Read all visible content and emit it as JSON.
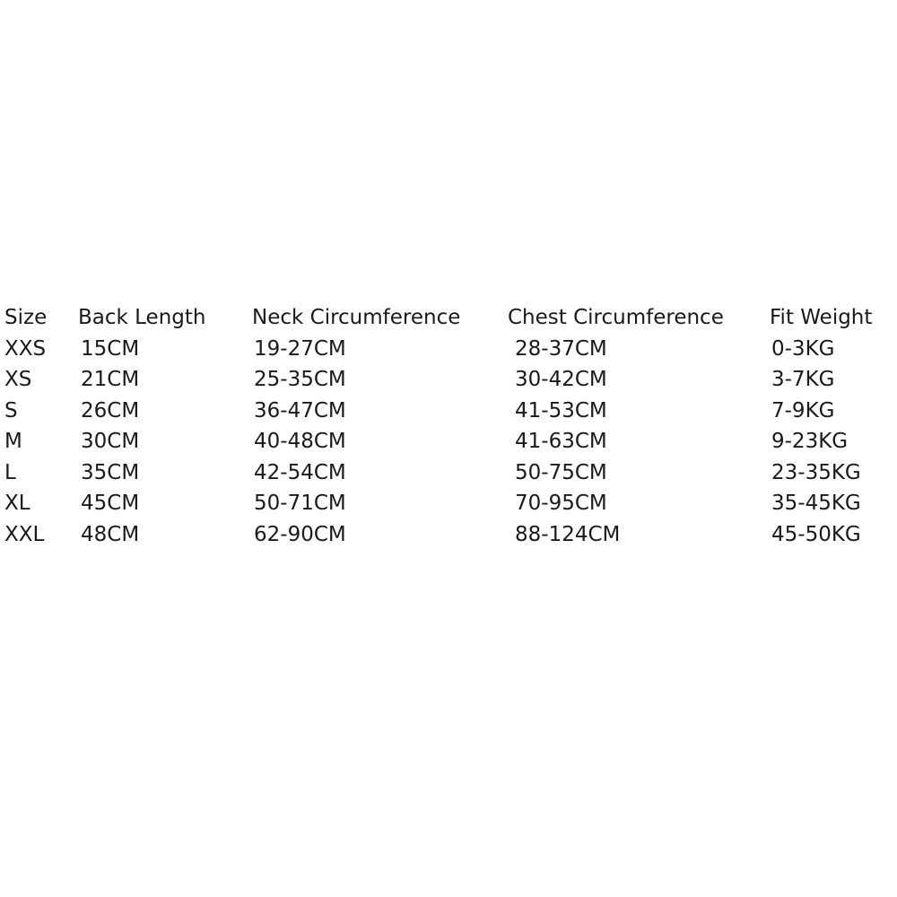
{
  "size_chart": {
    "headers": [
      "Size",
      "Back Length",
      "Neck Circumference",
      "Chest Circumference",
      "Fit Weight"
    ],
    "rows": [
      [
        "XXS",
        "15CM",
        "19-27CM",
        "28-37CM",
        "0-3KG"
      ],
      [
        "XS",
        "21CM",
        "25-35CM",
        "30-42CM",
        "3-7KG"
      ],
      [
        "S",
        "26CM",
        "36-47CM",
        "41-53CM",
        "7-9KG"
      ],
      [
        "M",
        "30CM",
        "40-48CM",
        "41-63CM",
        "9-23KG"
      ],
      [
        "L",
        "35CM",
        "42-54CM",
        "50-75CM",
        "23-35KG"
      ],
      [
        "XL",
        "45CM",
        "50-71CM",
        "70-95CM",
        "35-45KG"
      ],
      [
        "XXL",
        "48CM",
        "62-90CM",
        "88-124CM",
        "45-50KG"
      ]
    ]
  }
}
